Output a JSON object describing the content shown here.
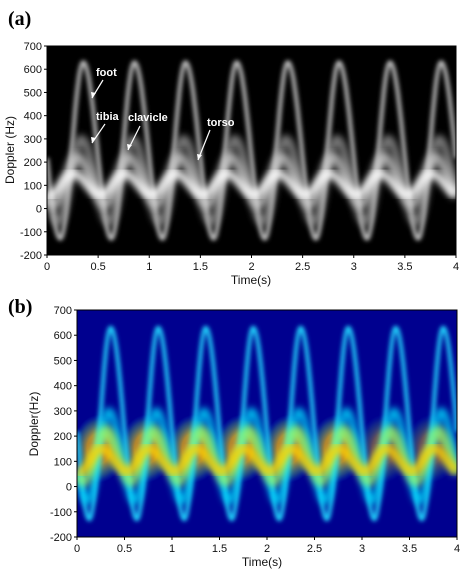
{
  "panel_a": {
    "label": "(a)",
    "chart_data": {
      "type": "heatmap",
      "title": "",
      "xlabel": "Time(s)",
      "ylabel": "Doppler (Hz)",
      "xlim": [
        0,
        4
      ],
      "ylim": [
        -200,
        700
      ],
      "xticks": [
        "0",
        "0.5",
        "1",
        "1.5",
        "2",
        "2.5",
        "3",
        "3.5",
        "4"
      ],
      "yticks": [
        "700",
        "600",
        "500",
        "400",
        "300",
        "200",
        "100",
        "0",
        "-100",
        "-200"
      ],
      "colormap": "grayscale",
      "background_color": "#000000",
      "series": [
        {
          "name": "foot",
          "period_s": 0.5,
          "peak_hz": 630,
          "trough_hz": -130
        },
        {
          "name": "tibia",
          "period_s": 0.5,
          "peak_hz": 300,
          "trough_hz": -60
        },
        {
          "name": "clavicle",
          "period_s": 0.5,
          "peak_hz": 220,
          "trough_hz": 20
        },
        {
          "name": "torso",
          "period_s": 0.5,
          "peak_hz": 150,
          "trough_hz": 60
        }
      ],
      "annotations": [
        "foot",
        "tibia",
        "clavicle",
        "torso"
      ]
    }
  },
  "panel_b": {
    "label": "(b)",
    "chart_data": {
      "type": "heatmap",
      "title": "",
      "xlabel": "Time(s)",
      "ylabel": "Doppler(Hz)",
      "xlim": [
        0,
        4
      ],
      "ylim": [
        -200,
        700
      ],
      "xticks": [
        "0",
        "0.5",
        "1",
        "1.5",
        "2",
        "2.5",
        "3",
        "3.5",
        "4"
      ],
      "yticks": [
        "700",
        "600",
        "500",
        "400",
        "300",
        "200",
        "100",
        "0",
        "-100",
        "-200"
      ],
      "colormap": "jet",
      "background_color": "#00008f",
      "series": [
        {
          "name": "foot",
          "period_s": 0.5,
          "peak_hz": 630,
          "trough_hz": -130
        },
        {
          "name": "tibia",
          "period_s": 0.5,
          "peak_hz": 300,
          "trough_hz": -60
        },
        {
          "name": "clavicle",
          "period_s": 0.5,
          "peak_hz": 220,
          "trough_hz": 20
        },
        {
          "name": "torso",
          "period_s": 0.5,
          "peak_hz": 150,
          "trough_hz": 60
        }
      ]
    }
  }
}
